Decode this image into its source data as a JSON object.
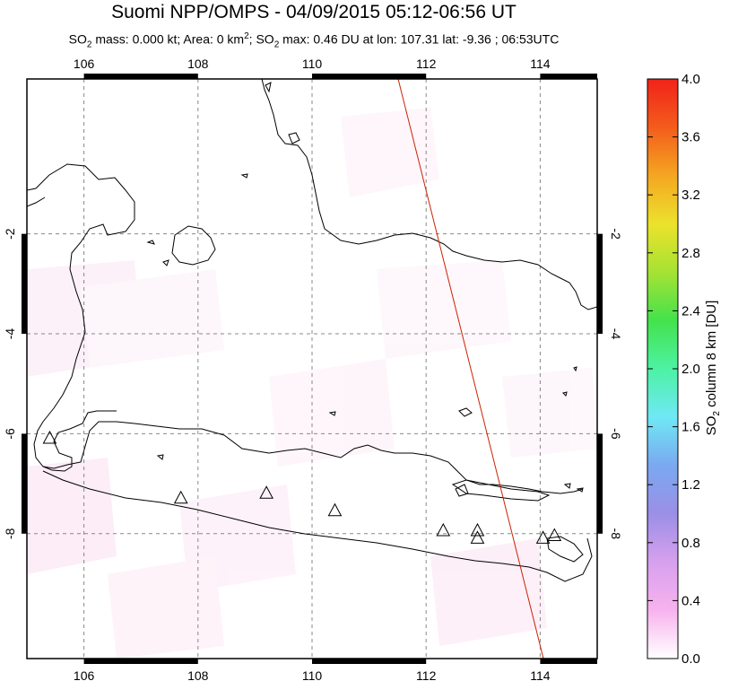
{
  "title": "Suomi NPP/OMPS - 04/09/2015 05:12-06:56 UT",
  "subtitle": {
    "so2_symbol": "SO",
    "so2_sub": "2",
    "mass_text": " mass: 0.000 kt; Area: 0 km",
    "area_sup": "2",
    "max_text": "; SO",
    "max_sub": "2",
    "max_rest": " max: 0.46 DU at lon: 107.31 lat: -9.36 ; 06:53UTC"
  },
  "map": {
    "lon_range": [
      105,
      115
    ],
    "lat_range": [
      -10.5,
      1.1
    ],
    "lon_ticks": [
      106,
      108,
      110,
      112,
      114
    ],
    "lat_ticks": [
      -2,
      -4,
      -6,
      -8
    ],
    "lon_tick_labels": [
      "106",
      "108",
      "110",
      "112",
      "114"
    ],
    "lat_tick_labels": [
      "-2",
      "-4",
      "-6",
      "-8"
    ],
    "orbit_line_color": "#cc2200",
    "volcano_markers": [
      {
        "lon": 105.4,
        "lat": -6.1
      },
      {
        "lon": 107.7,
        "lat": -7.3
      },
      {
        "lon": 109.2,
        "lat": -7.2
      },
      {
        "lon": 110.4,
        "lat": -7.55
      },
      {
        "lon": 112.3,
        "lat": -7.95
      },
      {
        "lon": 112.9,
        "lat": -7.95
      },
      {
        "lon": 112.9,
        "lat": -8.1
      },
      {
        "lon": 114.05,
        "lat": -8.1
      },
      {
        "lon": 114.25,
        "lat": -8.05
      }
    ]
  },
  "colorbar": {
    "title_main": "SO",
    "title_sub": "2",
    "title_rest": " column 8 km [DU]",
    "ticks": [
      "4.0",
      "3.6",
      "3.2",
      "2.8",
      "2.4",
      "2.0",
      "1.6",
      "1.2",
      "0.8",
      "0.4",
      "0.0"
    ],
    "range": [
      0.0,
      4.0
    ],
    "colors": [
      "#ffffff",
      "#f7b3ee",
      "#d7a0ee",
      "#9b8fe6",
      "#7aa9f0",
      "#6fe8f5",
      "#4df2a3",
      "#44e24c",
      "#a6e233",
      "#ece22c",
      "#f5a622",
      "#f35c1c",
      "#f2221a"
    ]
  }
}
